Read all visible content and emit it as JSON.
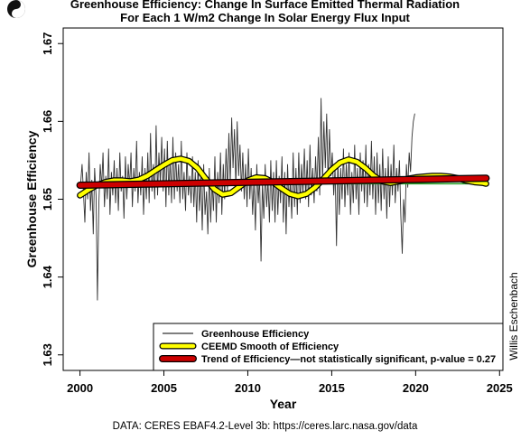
{
  "chart_data": {
    "type": "line",
    "title": "Greenhouse Efficiency: Change In Surface Emitted Thermal Radiation",
    "subtitle": "For Each 1 W/m2 Change In Solar Energy Flux Input",
    "xlabel": "Year",
    "ylabel": "Greenhouse Efficiency",
    "xlim": [
      1999.0,
      2025.2
    ],
    "ylim": [
      1.628,
      1.672
    ],
    "x_ticks": [
      "2000",
      "2005",
      "2010",
      "2015",
      "2020",
      "2025"
    ],
    "y_ticks": [
      "1.63",
      "1.64",
      "1.65",
      "1.66",
      "1.67"
    ],
    "grid": false,
    "legend_position": "bottom-right",
    "series": [
      {
        "name": "Greenhouse Efficiency",
        "color": "#333333",
        "x_start": 2000.04,
        "x_step": 0.0833,
        "values": [
          1.652,
          1.6545,
          1.651,
          1.647,
          1.6535,
          1.65,
          1.656,
          1.6485,
          1.6525,
          1.6455,
          1.654,
          1.6505,
          1.637,
          1.6495,
          1.6545,
          1.6515,
          1.656,
          1.649,
          1.653,
          1.65,
          1.6565,
          1.648,
          1.6535,
          1.6505,
          1.655,
          1.6495,
          1.654,
          1.6485,
          1.656,
          1.651,
          1.653,
          1.6475,
          1.6555,
          1.65,
          1.6545,
          1.6515,
          1.656,
          1.649,
          1.654,
          1.651,
          1.6575,
          1.6495,
          1.6535,
          1.6505,
          1.6555,
          1.648,
          1.654,
          1.65,
          1.656,
          1.6495,
          1.6585,
          1.651,
          1.6545,
          1.65,
          1.6595,
          1.6505,
          1.656,
          1.652,
          1.658,
          1.651,
          1.6565,
          1.649,
          1.6575,
          1.6505,
          1.655,
          1.6495,
          1.658,
          1.65,
          1.656,
          1.651,
          1.6545,
          1.6495,
          1.6575,
          1.65,
          1.6535,
          1.6485,
          1.656,
          1.6505,
          1.653,
          1.6495,
          1.6555,
          1.649,
          1.6535,
          1.647,
          1.655,
          1.6485,
          1.653,
          1.646,
          1.6545,
          1.648,
          1.651,
          1.6455,
          1.654,
          1.647,
          1.6525,
          1.6485,
          1.6555,
          1.647,
          1.6535,
          1.6495,
          1.656,
          1.648,
          1.6545,
          1.65,
          1.6565,
          1.651,
          1.6585,
          1.652,
          1.6605,
          1.654,
          1.659,
          1.6515,
          1.66,
          1.653,
          1.657,
          1.651,
          1.656,
          1.65,
          1.6545,
          1.649,
          1.6565,
          1.65,
          1.654,
          1.648,
          1.6525,
          1.646,
          1.6545,
          1.6495,
          1.653,
          1.642,
          1.652,
          1.6475,
          1.6545,
          1.649,
          1.6525,
          1.647,
          1.655,
          1.6485,
          1.6535,
          1.647,
          1.655,
          1.648,
          1.653,
          1.6495,
          1.6555,
          1.647,
          1.6535,
          1.6455,
          1.6545,
          1.649,
          1.6525,
          1.6475,
          1.656,
          1.649,
          1.654,
          1.648,
          1.656,
          1.6495,
          1.6545,
          1.6505,
          1.6565,
          1.65,
          1.655,
          1.649,
          1.657,
          1.6505,
          1.654,
          1.6495,
          1.6555,
          1.651,
          1.658,
          1.6505,
          1.663,
          1.652,
          1.66,
          1.654,
          1.661,
          1.652,
          1.659,
          1.653,
          1.656,
          1.6505,
          1.654,
          1.644,
          1.655,
          1.648,
          1.654,
          1.65,
          1.6565,
          1.649,
          1.6545,
          1.6505,
          1.656,
          1.648,
          1.6535,
          1.6495,
          1.657,
          1.65,
          1.654,
          1.648,
          1.656,
          1.651,
          1.655,
          1.6495,
          1.657,
          1.649,
          1.6545,
          1.6505,
          1.6575,
          1.65,
          1.6555,
          1.648,
          1.656,
          1.6495,
          1.6545,
          1.6485,
          1.6565,
          1.65,
          1.654,
          1.6475,
          1.6555,
          1.649,
          1.6545,
          1.6505,
          1.657,
          1.6495,
          1.654,
          1.651,
          1.655,
          1.648,
          1.643,
          1.65,
          1.647,
          1.6545,
          1.6515,
          1.656,
          1.6535,
          1.658,
          1.66,
          1.661
        ]
      },
      {
        "name": "CEEMD Smooth of Efficiency",
        "color": "#ffff00",
        "outline": "#000000",
        "x": [
          2000.0,
          2000.5,
          2001.0,
          2001.5,
          2002.0,
          2002.5,
          2003.0,
          2003.5,
          2004.0,
          2004.5,
          2005.0,
          2005.5,
          2006.0,
          2006.5,
          2007.0,
          2007.5,
          2008.0,
          2008.5,
          2009.0,
          2009.5,
          2010.0,
          2010.5,
          2011.0,
          2011.5,
          2012.0,
          2012.5,
          2013.0,
          2013.5,
          2014.0,
          2014.5,
          2015.0,
          2015.5,
          2016.0,
          2016.5,
          2017.0,
          2017.5,
          2018.0,
          2018.5,
          2019.0,
          2019.5,
          2020.0,
          2020.5,
          2021.0,
          2021.5,
          2022.0,
          2022.5,
          2023.0,
          2023.5,
          2024.0,
          2024.2
        ],
        "values": [
          1.6505,
          1.6512,
          1.6518,
          1.6522,
          1.6524,
          1.6524,
          1.6523,
          1.6525,
          1.653,
          1.6537,
          1.6544,
          1.655,
          1.6552,
          1.6549,
          1.654,
          1.6526,
          1.6513,
          1.6506,
          1.6508,
          1.6516,
          1.6524,
          1.6528,
          1.6527,
          1.6522,
          1.6514,
          1.6507,
          1.6504,
          1.6507,
          1.6515,
          1.6526,
          1.6538,
          1.6547,
          1.6551,
          1.6548,
          1.654,
          1.653,
          1.6523,
          1.6521,
          1.6523,
          1.6526,
          1.6528,
          1.6529,
          1.653,
          1.653,
          1.6529,
          1.6527,
          1.6524,
          1.6522,
          1.6521,
          1.652
        ]
      },
      {
        "name": "Trend of Efficiency—not statistically significant, p-value = 0.27",
        "color": "#cc0000",
        "x": [
          2000.0,
          2024.2
        ],
        "values": [
          1.6518,
          1.6527
        ]
      },
      {
        "name": "",
        "color": "#2ca02c",
        "x": [
          2000.0,
          2024.2
        ],
        "values": [
          1.652,
          1.652
        ]
      }
    ],
    "annotations": [
      "Willis Eschenbach"
    ]
  },
  "source_text": "DATA: CERES EBAF4.2-Level 3b: https://ceres.larc.nasa.gov/data"
}
